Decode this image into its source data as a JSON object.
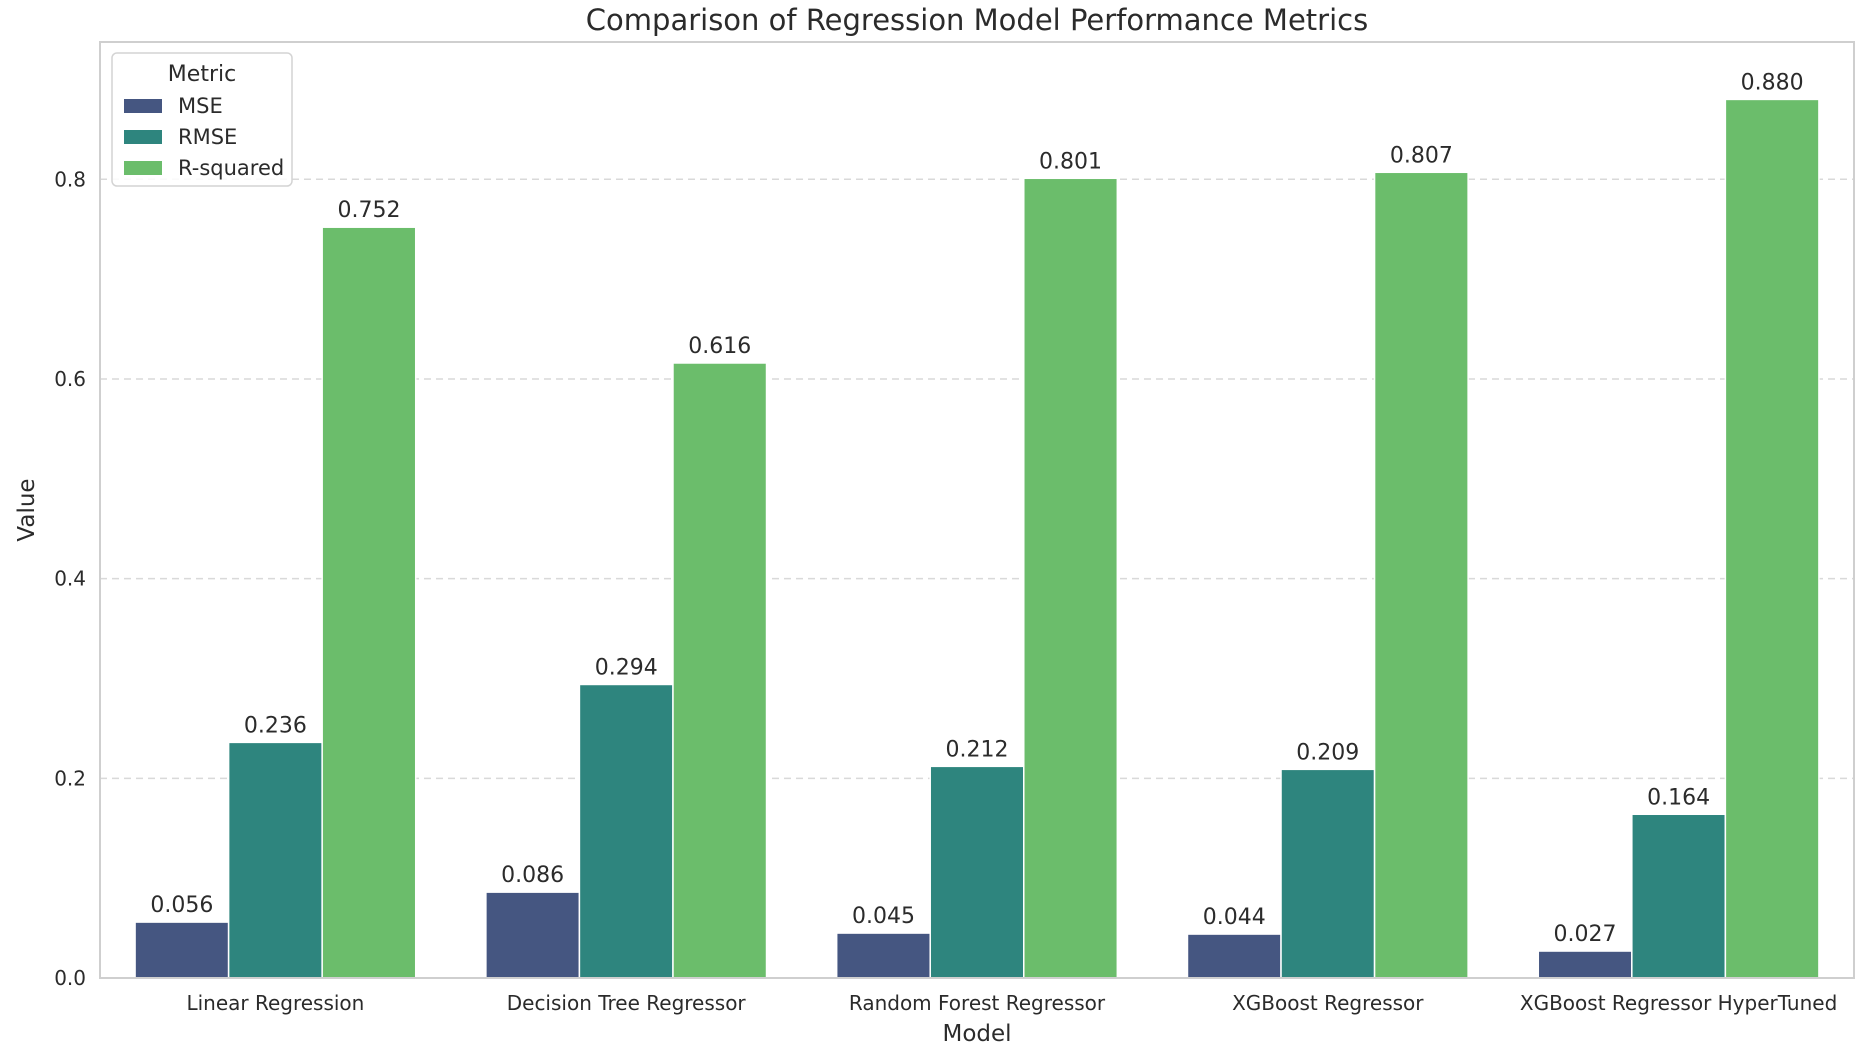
{
  "chart_data": {
    "type": "bar",
    "title": "Comparison of Regression Model Performance Metrics",
    "xlabel": "Model",
    "ylabel": "Value",
    "categories": [
      "Linear Regression",
      "Decision Tree Regressor",
      "Random Forest Regressor",
      "XGBoost Regressor",
      "XGBoost Regressor HyperTuned"
    ],
    "series": [
      {
        "name": "MSE",
        "color": "#455681",
        "values": [
          0.056,
          0.086,
          0.045,
          0.044,
          0.027
        ],
        "labels": [
          "0.056",
          "0.086",
          "0.045",
          "0.044",
          "0.027"
        ]
      },
      {
        "name": "RMSE",
        "color": "#2e857e",
        "values": [
          0.236,
          0.294,
          0.212,
          0.209,
          0.164
        ],
        "labels": [
          "0.236",
          "0.294",
          "0.212",
          "0.209",
          "0.164"
        ]
      },
      {
        "name": "R-squared",
        "color": "#6bbd6b",
        "values": [
          0.752,
          0.616,
          0.801,
          0.807,
          0.88
        ],
        "labels": [
          "0.752",
          "0.616",
          "0.801",
          "0.807",
          "0.880"
        ]
      }
    ],
    "ylim": [
      0,
      0.9375
    ],
    "yticks": [
      0.0,
      0.2,
      0.4,
      0.6,
      0.8
    ],
    "ytick_labels": [
      "0.0",
      "0.2",
      "0.4",
      "0.6",
      "0.8"
    ],
    "grid": "y-dashed",
    "legend": {
      "title": "Metric",
      "placement": "top-left"
    }
  }
}
